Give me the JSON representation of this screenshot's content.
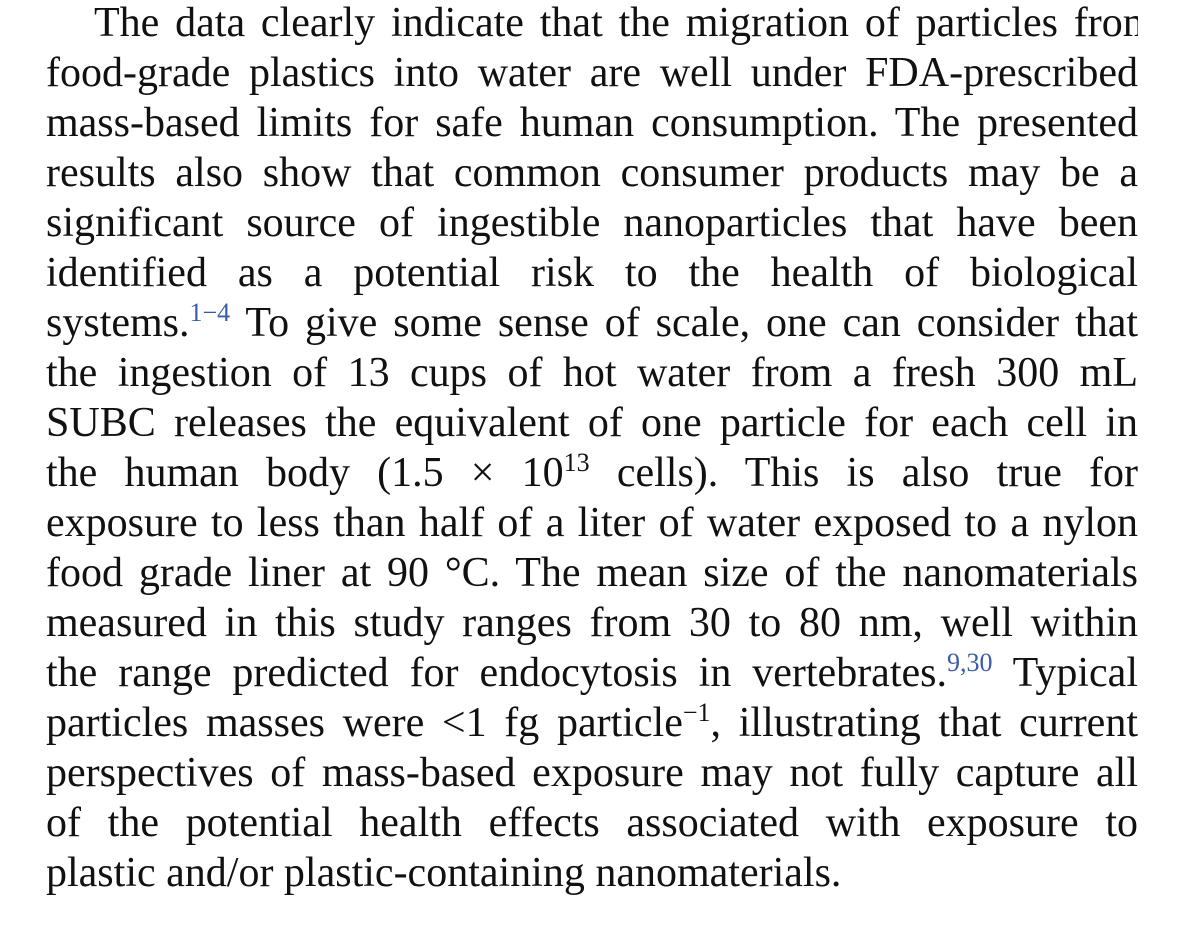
{
  "paragraph": {
    "lines": [
      "The data clearly indicate that the migration of particles from",
      "food-grade plastics into water are well under FDA-prescribed",
      "mass-based limits for safe human consumption. The presented",
      "results also show that common consumer products may be a",
      "significant source of ingestible nanoparticles that have been",
      "identified as a potential risk to the health of biological",
      {
        "before": "systems.",
        "sup": "1−4",
        "after": " To give some sense of scale, one can consider that"
      },
      "the ingestion of 13 cups of hot water from a fresh 300 mL",
      "SUBC releases the equivalent of one particle for each cell in",
      {
        "before": "the human body (1.5 × 10",
        "sup": "13",
        "after": " cells). This is also true for"
      },
      "exposure to less than half of a liter of water exposed to a nylon",
      "food grade liner at 90 °C. The mean size of the nanomaterials",
      "measured in this study ranges from 30 to 80 nm, well within",
      {
        "before": "the range predicted for endocytosis in vertebrates.",
        "sup": "9,30",
        "after": " Typical"
      },
      {
        "before": "particles masses were <1 fg particle",
        "sup": "−1",
        "after": ", illustrating that current"
      },
      "perspectives of mass-based exposure may not fully capture all",
      "of the potential health effects associated with exposure to",
      "plastic and/or plastic-containing nanomaterials."
    ]
  },
  "colors": {
    "text": "#111111",
    "citation": "#3a5ca8",
    "background": "#ffffff"
  }
}
